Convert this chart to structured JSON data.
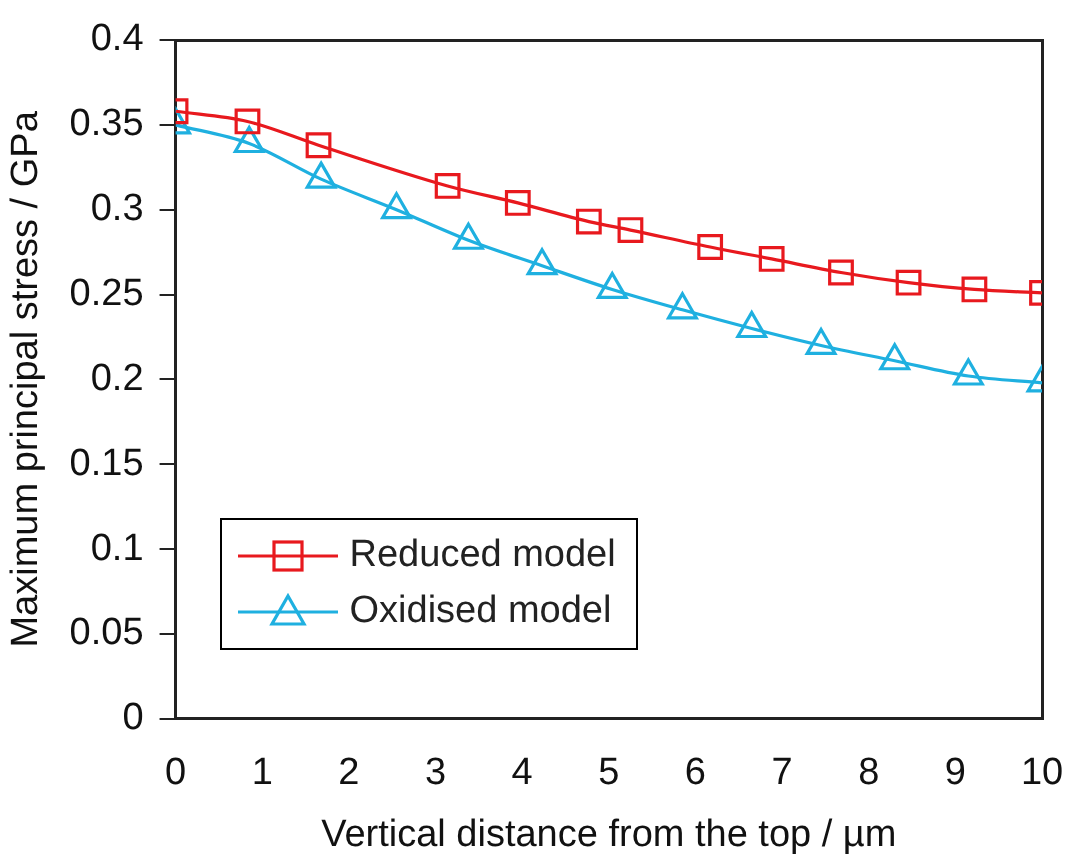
{
  "chart_data": {
    "type": "line",
    "xlabel": "Vertical distance from the top / µm",
    "ylabel": "Maximum principal stress / GPa",
    "xlim": [
      0,
      10
    ],
    "xticks": [
      0,
      1,
      2,
      3,
      4,
      5,
      6,
      7,
      8,
      9,
      10
    ],
    "ylim": [
      0,
      0.4
    ],
    "yticks": [
      0,
      0.05,
      0.1,
      0.15,
      0.2,
      0.25,
      0.3,
      0.35,
      0.4
    ],
    "grid": false,
    "legend": "bottom left",
    "series": [
      {
        "name": "Reduced model",
        "color": "#e8191e",
        "marker": "square",
        "x": [
          0,
          0.83,
          1.65,
          3.14,
          3.95,
          4.77,
          5.25,
          6.17,
          6.88,
          7.68,
          8.46,
          9.22,
          10
        ],
        "values": [
          0.358,
          0.352,
          0.338,
          0.314,
          0.304,
          0.293,
          0.288,
          0.278,
          0.271,
          0.263,
          0.257,
          0.253,
          0.251
        ]
      },
      {
        "name": "Oxidised model",
        "color": "#1fb0e0",
        "marker": "triangle",
        "x": [
          0,
          0.85,
          1.68,
          2.55,
          3.38,
          4.23,
          5.04,
          5.85,
          6.65,
          7.45,
          8.3,
          9.15,
          10
        ],
        "values": [
          0.35,
          0.339,
          0.318,
          0.3,
          0.282,
          0.267,
          0.253,
          0.241,
          0.23,
          0.22,
          0.211,
          0.202,
          0.198
        ]
      }
    ]
  }
}
